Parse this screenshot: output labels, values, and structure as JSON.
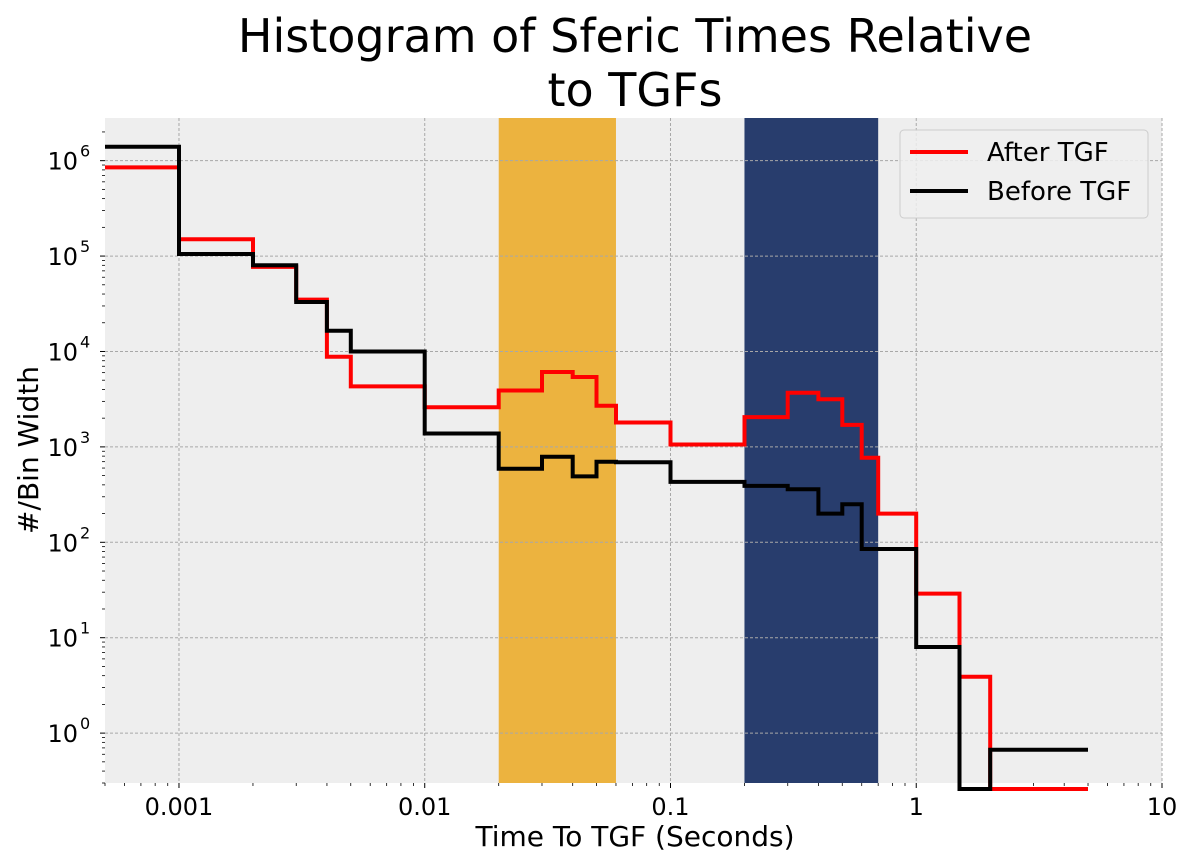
{
  "chart_data": {
    "type": "line",
    "title_lines": [
      "Histogram of Sferic Times Relative",
      "to TGFs"
    ],
    "xlabel": "Time To TGF (Seconds)",
    "ylabel": "#/Bin Width",
    "xscale": "log",
    "yscale": "log",
    "xlim": [
      0.0005,
      10
    ],
    "ylim": [
      0.3,
      2800000
    ],
    "grid": true,
    "legend_position": "top-right",
    "x_ticks": [
      {
        "value": 0.001,
        "label": "0.001"
      },
      {
        "value": 0.01,
        "label": "0.01"
      },
      {
        "value": 0.1,
        "label": "0.1"
      },
      {
        "value": 1,
        "label": "1"
      },
      {
        "value": 10,
        "label": "10"
      }
    ],
    "y_ticks": [
      {
        "value": 1,
        "base": "10",
        "exp": "0"
      },
      {
        "value": 10,
        "base": "10",
        "exp": "1"
      },
      {
        "value": 100,
        "base": "10",
        "exp": "2"
      },
      {
        "value": 1000,
        "base": "10",
        "exp": "3"
      },
      {
        "value": 10000,
        "base": "10",
        "exp": "4"
      },
      {
        "value": 100000,
        "base": "10",
        "exp": "5"
      },
      {
        "value": 1000000,
        "base": "10",
        "exp": "6"
      }
    ],
    "shaded_regions": [
      {
        "x": [
          0.02,
          0.06
        ],
        "color": "#ecb33f"
      },
      {
        "x": [
          0.2,
          0.7
        ],
        "color": "#283d6d"
      }
    ],
    "bin_edges": [
      0.0001,
      0.001,
      0.002,
      0.003,
      0.004,
      0.005,
      0.01,
      0.02,
      0.03,
      0.04,
      0.05,
      0.06,
      0.1,
      0.2,
      0.3,
      0.4,
      0.5,
      0.6,
      0.7,
      1.0,
      1.5,
      2.0,
      5.0
    ],
    "series": [
      {
        "name": "After TGF",
        "color": "#ff0000",
        "values": [
          850000,
          150000,
          77000,
          35000,
          8800,
          4300,
          2600,
          3900,
          6100,
          5400,
          2700,
          1800,
          1060,
          2050,
          3700,
          3150,
          1700,
          770,
          200,
          29,
          3.9,
          0
        ]
      },
      {
        "name": "Before TGF",
        "color": "#000000",
        "values": [
          1400000,
          105000,
          80000,
          33000,
          16500,
          10000,
          1380,
          590,
          790,
          490,
          700,
          690,
          430,
          390,
          360,
          200,
          250,
          85,
          85,
          8,
          0,
          0.67
        ]
      }
    ]
  }
}
